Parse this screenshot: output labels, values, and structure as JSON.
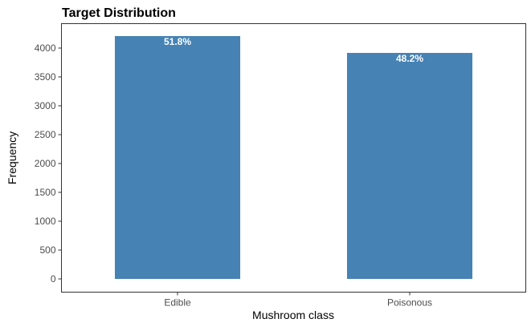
{
  "chart_data": {
    "type": "bar",
    "title": "Target Distribution",
    "xlabel": "Mushroom class",
    "ylabel": "Frequency",
    "categories": [
      "Edible",
      "Poisonous"
    ],
    "values": [
      4208,
      3916
    ],
    "data_labels": [
      "51.8%",
      "48.2%"
    ],
    "ylim": [
      0,
      4208
    ],
    "yticks": [
      0,
      500,
      1000,
      1500,
      2000,
      2500,
      3000,
      3500,
      4000
    ],
    "grid": false,
    "legend": "none",
    "bar_color": "#4682B4",
    "data_label_color": "#FFFFFF",
    "axis_text_color": "#4D4D4D"
  }
}
